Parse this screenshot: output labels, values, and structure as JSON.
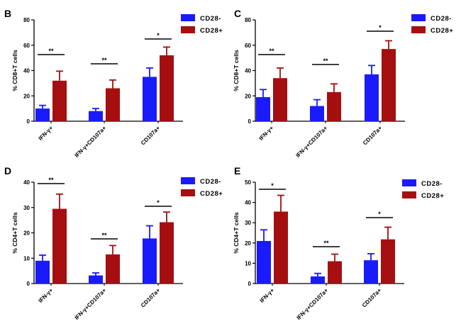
{
  "colors": {
    "cd28_minus": "#1a1aff",
    "cd28_plus": "#a50f0f",
    "axis": "#000000"
  },
  "chart_data": [
    {
      "panel": "B",
      "type": "bar",
      "ylabel": "% CD8+T cells",
      "ylim": [
        0,
        80
      ],
      "yticks": [
        0,
        20,
        40,
        60,
        80
      ],
      "categories": [
        "IFN-γ+",
        "IFN-γ+CD107a+",
        "CD107a+"
      ],
      "series": [
        {
          "name": "CD28-",
          "values": [
            10,
            8,
            35
          ],
          "errors": [
            2.5,
            2,
            7
          ]
        },
        {
          "name": "CD28+",
          "values": [
            32,
            26,
            52
          ],
          "errors": [
            7.5,
            6.5,
            6.5
          ]
        }
      ],
      "significance": [
        "**",
        "**",
        "*"
      ],
      "legend": "top-right"
    },
    {
      "panel": "C",
      "type": "bar",
      "ylabel": "% CD8+T cells",
      "ylim": [
        0,
        80
      ],
      "yticks": [
        0,
        20,
        40,
        60,
        80
      ],
      "categories": [
        "IFN-γ+",
        "IFN-γ+CD107a+",
        "CD107a+"
      ],
      "series": [
        {
          "name": "CD28-",
          "values": [
            19,
            12,
            37
          ],
          "errors": [
            6,
            5,
            7
          ]
        },
        {
          "name": "CD28+",
          "values": [
            34,
            23,
            57
          ],
          "errors": [
            8,
            6.5,
            6.5
          ]
        }
      ],
      "significance": [
        "**",
        "**",
        "*"
      ],
      "legend": "top-right"
    },
    {
      "panel": "D",
      "type": "bar",
      "ylabel": "% CD4+T cells",
      "ylim": [
        0,
        40
      ],
      "yticks": [
        0,
        10,
        20,
        30,
        40
      ],
      "categories": [
        "IFN-γ+",
        "IFN-γ+CD107a+",
        "CD107a+"
      ],
      "series": [
        {
          "name": "CD28-",
          "values": [
            9,
            3.2,
            17.8
          ],
          "errors": [
            2.2,
            1,
            5
          ]
        },
        {
          "name": "CD28+",
          "values": [
            29.5,
            11.5,
            24.2
          ],
          "errors": [
            5.8,
            3.5,
            4
          ]
        }
      ],
      "significance": [
        "**",
        "**",
        "*"
      ],
      "legend": "top-right"
    },
    {
      "panel": "E",
      "type": "bar",
      "ylabel": "% CD4+T cells",
      "ylim": [
        0,
        50
      ],
      "yticks": [
        0,
        10,
        20,
        30,
        40,
        50
      ],
      "categories": [
        "IFN-γ+",
        "IFN-γ+CD107a+",
        "CD107a+"
      ],
      "series": [
        {
          "name": "CD28-",
          "values": [
            21,
            3.5,
            11.5
          ],
          "errors": [
            5.5,
            1.5,
            3.2
          ]
        },
        {
          "name": "CD28+",
          "values": [
            35.5,
            11,
            21.8
          ],
          "errors": [
            8,
            3.5,
            6
          ]
        }
      ],
      "significance": [
        "*",
        "**",
        "*"
      ],
      "legend": "top-right"
    }
  ]
}
